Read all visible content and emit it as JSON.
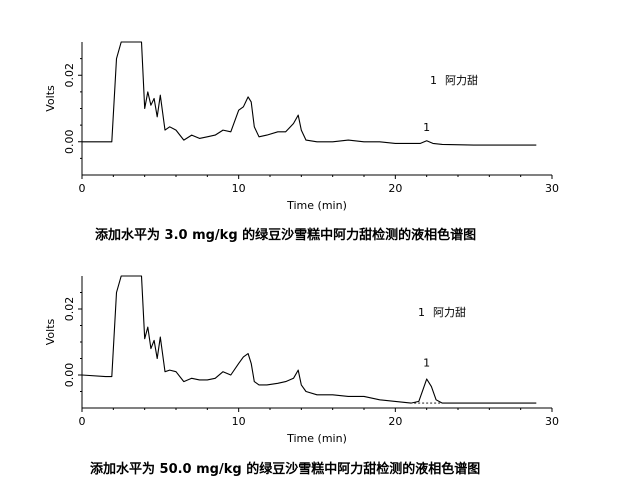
{
  "chart_data": [
    {
      "type": "line",
      "caption": "添加水平为 3.0 mg/kg 的绿豆沙雪糕中阿力甜检测的液相色谱图",
      "xlabel": "Time (min)",
      "ylabel": "Volts",
      "xlim": [
        0,
        30
      ],
      "ylim": [
        -0.01,
        0.03
      ],
      "xticks": [
        "0",
        "10",
        "20",
        "30"
      ],
      "yticks": [
        "0.00",
        "0.02"
      ],
      "legend": {
        "number": "1",
        "name": "阿力甜"
      },
      "peaks": [
        {
          "label": "1",
          "x": 22.0,
          "y": 0.0015
        }
      ],
      "series": [
        {
          "x": [
            0,
            1.5,
            1.9,
            2.2,
            2.5,
            3.8,
            4.0,
            4.2,
            4.4,
            4.6,
            4.8,
            5.0,
            5.3,
            5.6,
            6.0,
            6.5,
            7.0,
            7.5,
            8.0,
            8.5,
            9.0,
            9.5,
            10.0,
            10.3,
            10.6,
            10.8,
            11.0,
            11.3,
            11.8,
            12.5,
            13.0,
            13.5,
            13.8,
            14.0,
            14.3,
            15.0,
            16.0,
            17.0,
            18.0,
            19.0,
            20.0,
            21.0,
            21.6,
            22.0,
            22.4,
            23.0,
            25.0,
            27.0,
            29.0
          ],
          "y": [
            0.0,
            0.0,
            0.0,
            0.025,
            0.03,
            0.03,
            0.01,
            0.015,
            0.011,
            0.013,
            0.0075,
            0.014,
            0.0035,
            0.0045,
            0.0035,
            0.0005,
            0.002,
            0.001,
            0.0015,
            0.002,
            0.0035,
            0.003,
            0.0095,
            0.0105,
            0.0135,
            0.012,
            0.0045,
            0.0015,
            0.002,
            0.003,
            0.003,
            0.0055,
            0.008,
            0.0035,
            0.0005,
            0.0,
            0.0,
            0.0005,
            0.0,
            0.0,
            -0.0005,
            -0.0005,
            -0.0005,
            0.0003,
            -0.0005,
            -0.0008,
            -0.001,
            -0.001,
            -0.001
          ]
        }
      ]
    },
    {
      "type": "line",
      "caption": "添加水平为 50.0 mg/kg 的绿豆沙雪糕中阿力甜检测的液相色谱图",
      "xlabel": "Time (min)",
      "ylabel": "Volts",
      "xlim": [
        0,
        30
      ],
      "ylim": [
        -0.01,
        0.03
      ],
      "xticks": [
        "0",
        "10",
        "20",
        "30"
      ],
      "yticks": [
        "0.00",
        "0.02"
      ],
      "legend": {
        "number": "1",
        "name": "阿力甜"
      },
      "peaks": [
        {
          "label": "1",
          "x": 22.0,
          "y": 0.0008
        }
      ],
      "series": [
        {
          "x": [
            0,
            1.5,
            1.9,
            2.2,
            2.5,
            3.8,
            4.0,
            4.2,
            4.4,
            4.6,
            4.8,
            5.0,
            5.3,
            5.6,
            6.0,
            6.5,
            7.0,
            7.5,
            8.0,
            8.5,
            9.0,
            9.5,
            10.0,
            10.3,
            10.6,
            10.8,
            11.0,
            11.3,
            11.8,
            12.5,
            13.0,
            13.5,
            13.8,
            14.0,
            14.3,
            15.0,
            16.0,
            17.0,
            18.0,
            19.0,
            20.0,
            21.0,
            21.5,
            21.8,
            22.0,
            22.3,
            22.6,
            23.0,
            25.0,
            27.0,
            29.0
          ],
          "y": [
            0.0,
            -0.0005,
            -0.0005,
            0.025,
            0.03,
            0.03,
            0.011,
            0.0145,
            0.008,
            0.0105,
            0.005,
            0.0115,
            0.001,
            0.0015,
            0.001,
            -0.002,
            -0.001,
            -0.0015,
            -0.0015,
            -0.001,
            0.001,
            0.0,
            0.0035,
            0.0055,
            0.0065,
            0.0035,
            -0.002,
            -0.003,
            -0.003,
            -0.0025,
            -0.002,
            -0.001,
            0.0015,
            -0.003,
            -0.005,
            -0.006,
            -0.006,
            -0.0065,
            -0.0065,
            -0.0075,
            -0.008,
            -0.0085,
            -0.008,
            -0.004,
            -0.0012,
            -0.0035,
            -0.0075,
            -0.0085,
            -0.0085,
            -0.0085,
            -0.0085
          ]
        }
      ]
    }
  ]
}
